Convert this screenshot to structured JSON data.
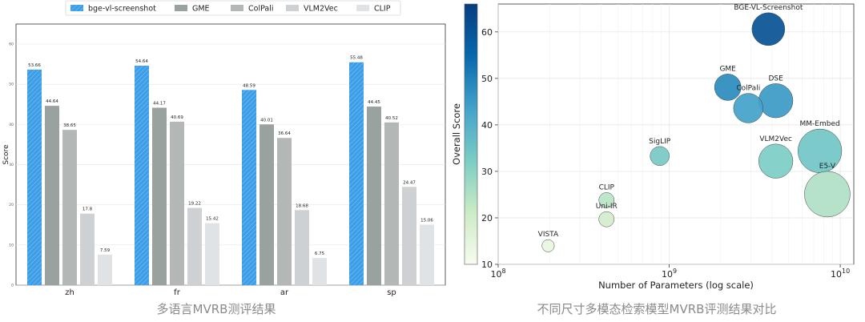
{
  "captions": {
    "left": "多语言MVRB测评结果",
    "right": "不同尺寸多模态检索模型MVRB评测结果对比"
  },
  "chart_data": [
    {
      "type": "bar",
      "title": "",
      "xlabel": "",
      "ylabel": "Score",
      "ylim": [
        0,
        65
      ],
      "y_ticks": [
        "0",
        "10",
        "20",
        "30",
        "40",
        "50",
        "60"
      ],
      "grid": true,
      "legend_position": "top",
      "categories": [
        "zh",
        "fr",
        "ar",
        "sp"
      ],
      "series": [
        {
          "name": "bge-vl-screenshot",
          "color": "#3d9ee8",
          "hatch": true,
          "values": [
            53.66,
            54.64,
            48.59,
            55.48
          ]
        },
        {
          "name": "GME",
          "color": "#9aa2a0",
          "values": [
            44.64,
            44.17,
            40.01,
            44.45
          ]
        },
        {
          "name": "ColPali",
          "color": "#b3b8b7",
          "values": [
            38.65,
            40.69,
            36.64,
            40.52
          ]
        },
        {
          "name": "VLM2Vec",
          "color": "#cdd1d3",
          "values": [
            17.8,
            19.22,
            18.68,
            24.47
          ]
        },
        {
          "name": "CLIP",
          "color": "#dfe3e6",
          "values": [
            7.59,
            15.42,
            6.75,
            15.06
          ]
        }
      ]
    },
    {
      "type": "scatter",
      "title": "",
      "xlabel": "Number of Parameters (log scale)",
      "ylabel": "Overall Score",
      "x_scale": "log",
      "xlim": [
        100000000,
        12000000000
      ],
      "ylim": [
        10,
        66
      ],
      "x_ticks": [
        {
          "value": 100000000,
          "base": "10",
          "exp": "8"
        },
        {
          "value": 1000000000,
          "base": "10",
          "exp": "9"
        },
        {
          "value": 10000000000,
          "base": "10",
          "exp": "10"
        }
      ],
      "y_ticks": [
        "10",
        "20",
        "30",
        "40",
        "50",
        "60"
      ],
      "grid": true,
      "colorbar": {
        "position": "left",
        "min": 10,
        "max": 66,
        "colors": [
          "#f7fcf0",
          "#ccebc5",
          "#7bccc4",
          "#43a2ca",
          "#0868ac",
          "#083d7f"
        ]
      },
      "points": [
        {
          "label": "BGE-VL-Screenshot",
          "x": 3800000000,
          "y": 60.6
        },
        {
          "label": "GME",
          "x": 2200000000,
          "y": 48.1
        },
        {
          "label": "DSE",
          "x": 4200000000,
          "y": 45.2
        },
        {
          "label": "ColPali",
          "x": 2900000000,
          "y": 43.6
        },
        {
          "label": "MM-Embed",
          "x": 7600000000,
          "y": 34.4
        },
        {
          "label": "VLM2Vec",
          "x": 4200000000,
          "y": 32.2
        },
        {
          "label": "E5-V",
          "x": 8400000000,
          "y": 25.1
        },
        {
          "label": "SigLIP",
          "x": 880000000,
          "y": 33.3
        },
        {
          "label": "CLIP",
          "x": 430000000,
          "y": 23.8
        },
        {
          "label": "Uni-IR",
          "x": 430000000,
          "y": 19.7
        },
        {
          "label": "VISTA",
          "x": 196000000,
          "y": 14.0
        }
      ]
    }
  ]
}
